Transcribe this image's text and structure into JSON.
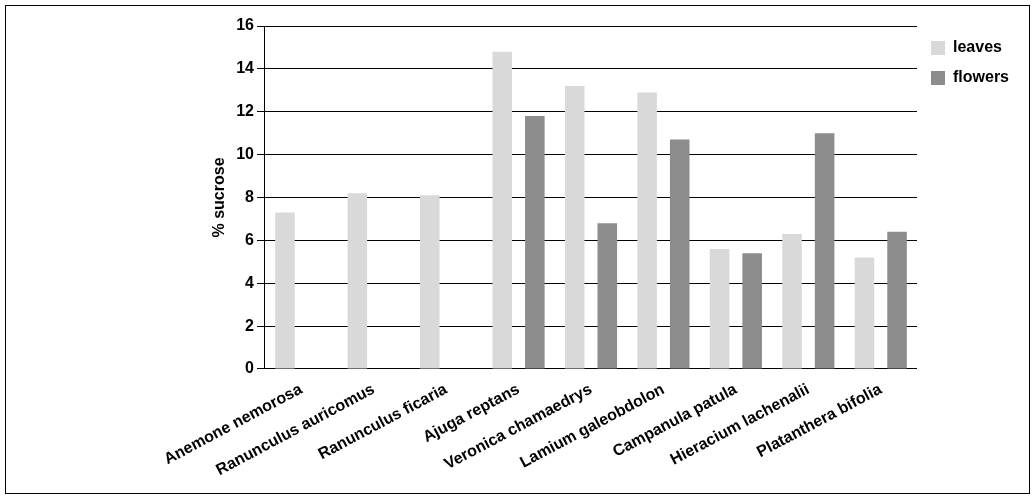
{
  "chart_data": {
    "type": "bar",
    "ylabel": "% sucrose",
    "categories": [
      "Anemone nemorosa",
      "Ranunculus auricomus",
      "Ranunculus ficaria",
      "Ajuga reptans",
      "Veronica chamaedrys",
      "Lamium galeobdolon",
      "Campanula patula",
      "Hieracium lachenalii",
      "Platanthera bifolia"
    ],
    "series": [
      {
        "name": "leaves",
        "color": "#d9d9d9",
        "values": [
          7.3,
          8.2,
          8.1,
          14.8,
          13.2,
          12.9,
          5.6,
          6.3,
          5.2
        ]
      },
      {
        "name": "flowers",
        "color": "#8c8c8c",
        "values": [
          null,
          null,
          null,
          11.8,
          6.8,
          10.7,
          5.4,
          11.0,
          6.4
        ]
      }
    ],
    "ylim": [
      0,
      16
    ],
    "yticks": [
      0,
      2,
      4,
      6,
      8,
      10,
      12,
      14,
      16
    ],
    "grid": "y",
    "legend": "top right"
  }
}
